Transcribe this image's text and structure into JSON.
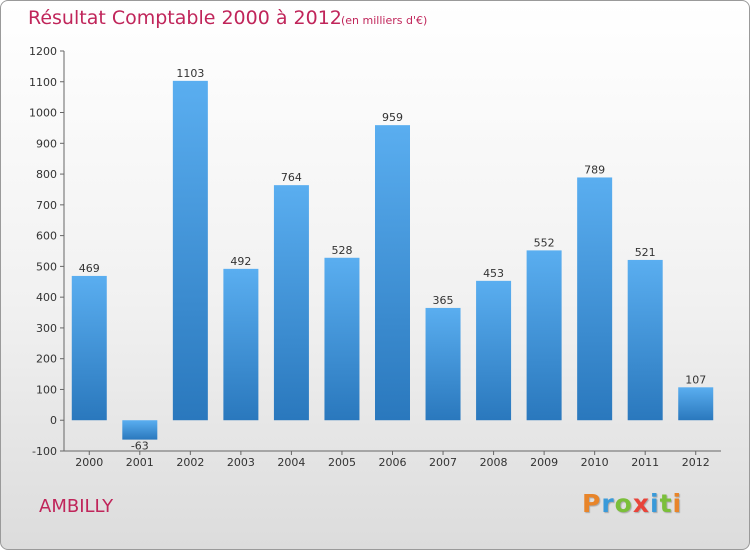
{
  "chart_data": {
    "type": "bar",
    "title": "Résultat Comptable 2000 à 2012",
    "subtitle": "(en milliers d'€)",
    "categories": [
      "2000",
      "2001",
      "2002",
      "2003",
      "2004",
      "2005",
      "2006",
      "2007",
      "2008",
      "2009",
      "2010",
      "2011",
      "2012"
    ],
    "values": [
      469,
      -63,
      1103,
      492,
      764,
      528,
      959,
      365,
      453,
      552,
      789,
      521,
      107
    ],
    "ylim": [
      -100,
      1200
    ],
    "yticks": [
      -100,
      0,
      100,
      200,
      300,
      400,
      500,
      600,
      700,
      800,
      900,
      1000,
      1100,
      1200
    ],
    "xlabel": "",
    "ylabel": "",
    "bar_color_top": "#5aaef0",
    "bar_color_bottom": "#2a78bd"
  },
  "footer": {
    "commune": "AMBILLY",
    "logo_letters": [
      "P",
      "r",
      "o",
      "x",
      "i",
      "t",
      "i"
    ],
    "logo_colors": [
      "#e8852a",
      "#3a9ad9",
      "#7bbf3a",
      "#e8443a",
      "#3a9ad9",
      "#7bbf3a",
      "#e8852a"
    ]
  }
}
